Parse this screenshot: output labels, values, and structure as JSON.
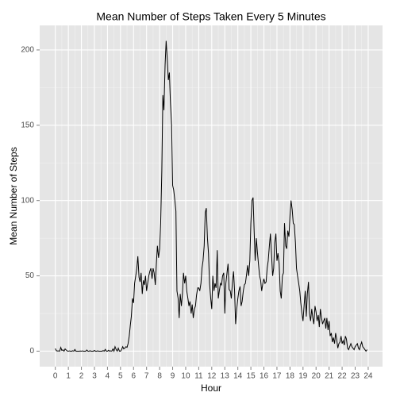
{
  "chart_data": {
    "type": "line",
    "title": "Mean Number of Steps Taken Every 5 Minutes",
    "x_label": "Hour",
    "y_label": "Mean Number of Steps",
    "color": "#000000",
    "grid": true,
    "xlim": [
      -1.2,
      25.1
    ],
    "ylim": [
      -10.3,
      216.3
    ],
    "xticks": [
      0,
      1,
      2,
      3,
      4,
      5,
      6,
      7,
      8,
      9,
      10,
      11,
      12,
      13,
      14,
      15,
      16,
      17,
      18,
      19,
      20,
      21,
      22,
      23,
      24
    ],
    "yticks": [
      0,
      50,
      100,
      150,
      200
    ],
    "x": [
      0,
      0.08,
      0.17,
      0.25,
      0.33,
      0.42,
      0.5,
      0.58,
      0.67,
      0.75,
      0.83,
      0.92,
      1,
      1.08,
      1.17,
      1.25,
      1.33,
      1.42,
      1.5,
      1.58,
      1.67,
      1.75,
      1.83,
      1.92,
      2,
      2.08,
      2.17,
      2.25,
      2.33,
      2.42,
      2.5,
      2.58,
      2.67,
      2.75,
      2.83,
      2.92,
      3,
      3.08,
      3.17,
      3.25,
      3.33,
      3.42,
      3.5,
      3.58,
      3.67,
      3.75,
      3.83,
      3.92,
      4,
      4.08,
      4.17,
      4.25,
      4.33,
      4.42,
      4.5,
      4.58,
      4.67,
      4.75,
      4.83,
      4.92,
      5,
      5.08,
      5.17,
      5.25,
      5.33,
      5.42,
      5.5,
      5.58,
      5.67,
      5.75,
      5.83,
      5.92,
      6,
      6.08,
      6.17,
      6.25,
      6.33,
      6.42,
      6.5,
      6.58,
      6.67,
      6.75,
      6.83,
      6.92,
      7,
      7.08,
      7.17,
      7.25,
      7.33,
      7.42,
      7.5,
      7.58,
      7.67,
      7.75,
      7.83,
      7.92,
      8,
      8.08,
      8.17,
      8.25,
      8.33,
      8.42,
      8.5,
      8.58,
      8.67,
      8.75,
      8.83,
      8.92,
      9,
      9.08,
      9.17,
      9.25,
      9.33,
      9.42,
      9.5,
      9.58,
      9.67,
      9.75,
      9.83,
      9.92,
      10,
      10.08,
      10.17,
      10.25,
      10.33,
      10.42,
      10.5,
      10.58,
      10.67,
      10.75,
      10.83,
      10.92,
      11,
      11.08,
      11.17,
      11.25,
      11.33,
      11.42,
      11.5,
      11.58,
      11.67,
      11.75,
      11.83,
      11.92,
      12,
      12.08,
      12.17,
      12.25,
      12.33,
      12.42,
      12.5,
      12.58,
      12.67,
      12.75,
      12.83,
      12.92,
      13,
      13.08,
      13.17,
      13.25,
      13.33,
      13.42,
      13.5,
      13.58,
      13.67,
      13.75,
      13.83,
      13.92,
      14,
      14.08,
      14.17,
      14.25,
      14.33,
      14.42,
      14.5,
      14.58,
      14.67,
      14.75,
      14.83,
      14.92,
      15,
      15.08,
      15.17,
      15.25,
      15.33,
      15.42,
      15.5,
      15.58,
      15.67,
      15.75,
      15.83,
      15.92,
      16,
      16.08,
      16.17,
      16.25,
      16.33,
      16.42,
      16.5,
      16.58,
      16.67,
      16.75,
      16.83,
      16.92,
      17,
      17.08,
      17.17,
      17.25,
      17.33,
      17.42,
      17.5,
      17.58,
      17.67,
      17.75,
      17.83,
      17.92,
      18,
      18.08,
      18.17,
      18.25,
      18.33,
      18.42,
      18.5,
      18.58,
      18.67,
      18.75,
      18.83,
      18.92,
      19,
      19.08,
      19.17,
      19.25,
      19.33,
      19.42,
      19.5,
      19.58,
      19.67,
      19.75,
      19.83,
      19.92,
      20,
      20.08,
      20.17,
      20.25,
      20.33,
      20.42,
      20.5,
      20.58,
      20.67,
      20.75,
      20.83,
      20.92,
      21,
      21.08,
      21.17,
      21.25,
      21.33,
      21.42,
      21.5,
      21.58,
      21.67,
      21.75,
      21.83,
      21.92,
      22,
      22.08,
      22.17,
      22.25,
      22.33,
      22.42,
      22.5,
      22.58,
      22.67,
      22.75,
      22.83,
      22.92,
      23,
      23.08,
      23.17,
      23.25,
      23.33,
      23.42,
      23.5,
      23.58,
      23.67,
      23.75,
      23.83,
      23.92
    ],
    "values": [
      1.7,
      0.3,
      0.1,
      0.2,
      0,
      2.5,
      0.5,
      0.9,
      0,
      1.5,
      0.8,
      0.1,
      0,
      0.2,
      0,
      0,
      0.3,
      0,
      1.1,
      0,
      0,
      0,
      0,
      0.1,
      0,
      0.2,
      0,
      0,
      0,
      0.8,
      0,
      0,
      0.3,
      0,
      0,
      0,
      0.5,
      0,
      0,
      0.2,
      0,
      0,
      0,
      0,
      0.4,
      0,
      1.2,
      0,
      0,
      0.6,
      0,
      0.2,
      0,
      1.5,
      0,
      3,
      1,
      0,
      2,
      0,
      0,
      1,
      3,
      1.5,
      2,
      3,
      2.5,
      5,
      10,
      17,
      23,
      35,
      32,
      45,
      50,
      55,
      63,
      49,
      46,
      52,
      38,
      47,
      44,
      50,
      40,
      45,
      50,
      53,
      55,
      48,
      55,
      52,
      44,
      58,
      70,
      62,
      68,
      85,
      120,
      170,
      160,
      190,
      206,
      195,
      180,
      185,
      165,
      150,
      110,
      107,
      100,
      93,
      40,
      35,
      22,
      38,
      30,
      38,
      52,
      45,
      50,
      40,
      35,
      30,
      33,
      25,
      31,
      22,
      28,
      30,
      37,
      42,
      42,
      40,
      45,
      55,
      60,
      70,
      92,
      95,
      75,
      65,
      45,
      35,
      28,
      50,
      40,
      45,
      42,
      67,
      35,
      40,
      45,
      44,
      50,
      52,
      25,
      45,
      52,
      58,
      41,
      40,
      35,
      45,
      53,
      40,
      18,
      28,
      35,
      40,
      43,
      30,
      33,
      40,
      44,
      45,
      51,
      57,
      50,
      60,
      85,
      100,
      102,
      80,
      60,
      75,
      66,
      58,
      50,
      47,
      40,
      45,
      48,
      45,
      46,
      55,
      60,
      70,
      78,
      65,
      50,
      55,
      72,
      78,
      60,
      65,
      58,
      40,
      35,
      50,
      52,
      85,
      70,
      68,
      80,
      76,
      90,
      100,
      94,
      85,
      84,
      72,
      55,
      50,
      45,
      40,
      32,
      25,
      20,
      30,
      40,
      23,
      38,
      46,
      25,
      20,
      28,
      22,
      18,
      30,
      26,
      20,
      24,
      16,
      28,
      22,
      18,
      20,
      22,
      15,
      22,
      14,
      20,
      10,
      12,
      6,
      9,
      5,
      12,
      8,
      2,
      5,
      6,
      10,
      5,
      7,
      4,
      10,
      8,
      2,
      1,
      3,
      5,
      3,
      2,
      1,
      3,
      4,
      5,
      2,
      1,
      4,
      6,
      3,
      2,
      1,
      0,
      1
    ]
  }
}
